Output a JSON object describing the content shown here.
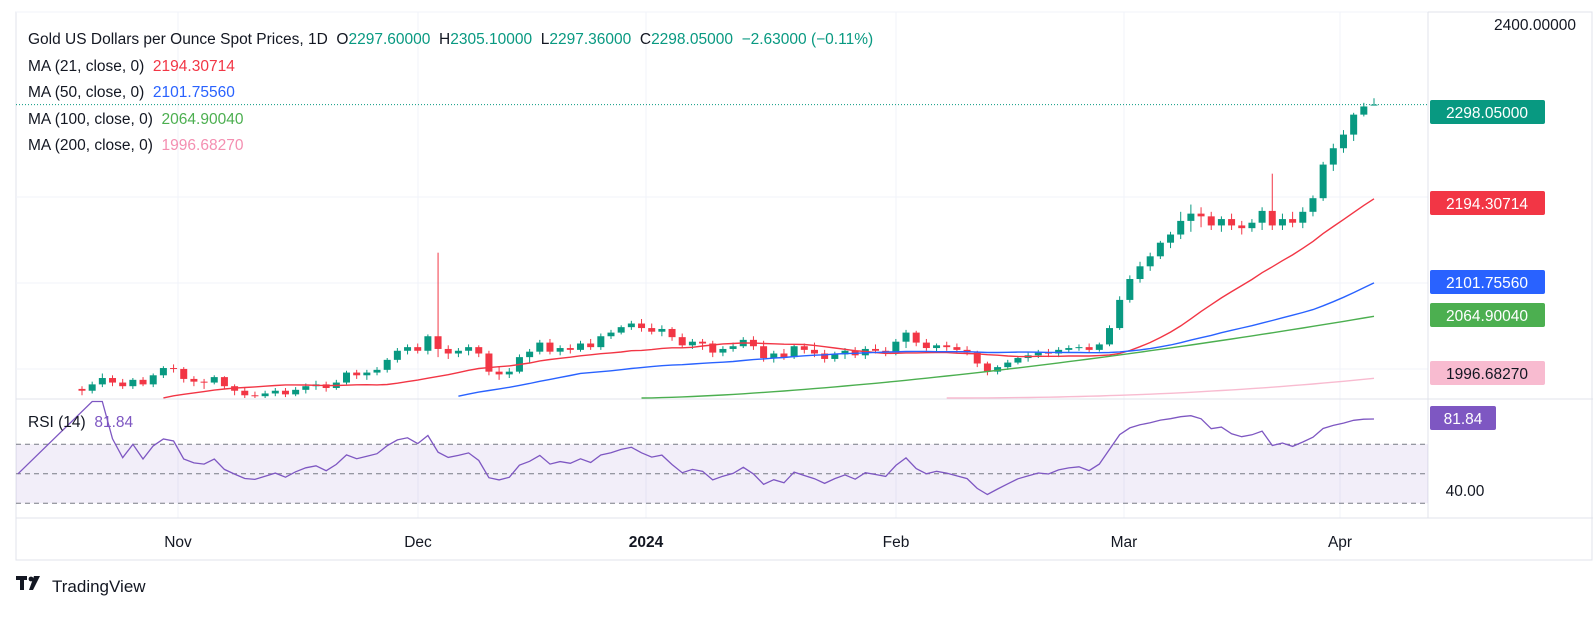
{
  "legend": {
    "title": "Gold US Dollars per Ounce Spot Prices, 1D",
    "o_label": "O",
    "o": "2297.60000",
    "h_label": "H",
    "h": "2305.10000",
    "l_label": "L",
    "l": "2297.36000",
    "c_label": "C",
    "c": "2298.05000",
    "change": "−2.63000 (−0.11%)",
    "ma21_label": "MA (21, close, 0)",
    "ma21": "2194.30714",
    "ma50_label": "MA (50, close, 0)",
    "ma50": "2101.75560",
    "ma100_label": "MA (100, close, 0)",
    "ma100": "2064.90040",
    "ma200_label": "MA (200, close, 0)",
    "ma200": "1996.68270"
  },
  "rsi": {
    "label": "RSI (14)",
    "value": "81.84"
  },
  "brand": {
    "name": "TradingView"
  },
  "colors": {
    "up": "#089981",
    "down": "#F23645",
    "ma21": "#F23645",
    "ma50": "#2962FF",
    "ma100": "#4CAF50",
    "ma200": "#F8BBD0",
    "rsi": "#7E57C2"
  },
  "chart_data": {
    "type": "candlestick",
    "interval": "1D",
    "x_ticks": [
      "Nov",
      "Dec",
      "2024",
      "Feb",
      "Mar",
      "Apr"
    ],
    "y_ticks": [
      "2400.00000"
    ],
    "price_labels": [
      {
        "series": "close",
        "value": "2298.05000"
      },
      {
        "series": "MA 21",
        "value": "2194.30714"
      },
      {
        "series": "MA 50",
        "value": "2101.75560"
      },
      {
        "series": "MA 100",
        "value": "2064.90040"
      },
      {
        "series": "MA 200",
        "value": "1996.68270"
      }
    ],
    "price_range": [
      1975,
      2400
    ],
    "candles": [
      [
        1985,
        1988,
        1978,
        1983
      ],
      [
        1983,
        1993,
        1980,
        1990
      ],
      [
        1990,
        2002,
        1987,
        1997
      ],
      [
        1997,
        2000,
        1988,
        1992
      ],
      [
        1992,
        1996,
        1985,
        1988
      ],
      [
        1988,
        1997,
        1985,
        1995
      ],
      [
        1995,
        1998,
        1988,
        1990
      ],
      [
        1990,
        2002,
        1987,
        2000
      ],
      [
        2000,
        2010,
        1997,
        2008
      ],
      [
        2008,
        2012,
        2003,
        2007
      ],
      [
        2007,
        2009,
        1992,
        1996
      ],
      [
        1996,
        1999,
        1988,
        1993
      ],
      [
        1993,
        1996,
        1985,
        1992
      ],
      [
        1992,
        2000,
        1990,
        1998
      ],
      [
        1998,
        1999,
        1985,
        1988
      ],
      [
        1988,
        1990,
        1978,
        1983
      ],
      [
        1983,
        1986,
        1975,
        1978
      ],
      [
        1978,
        1982,
        1974,
        1977
      ],
      [
        1977,
        1983,
        1975,
        1980
      ],
      [
        1980,
        1986,
        1977,
        1983
      ],
      [
        1983,
        1986,
        1976,
        1979
      ],
      [
        1979,
        1987,
        1977,
        1984
      ],
      [
        1984,
        1991,
        1980,
        1988
      ],
      [
        1988,
        1994,
        1984,
        1990
      ],
      [
        1990,
        1993,
        1982,
        1986
      ],
      [
        1986,
        1995,
        1984,
        1992
      ],
      [
        1992,
        2005,
        1990,
        2003
      ],
      [
        2003,
        2006,
        1996,
        2000
      ],
      [
        2000,
        2006,
        1995,
        2003
      ],
      [
        2003,
        2009,
        2000,
        2006
      ],
      [
        2006,
        2019,
        2003,
        2017
      ],
      [
        2017,
        2030,
        2014,
        2027
      ],
      [
        2027,
        2034,
        2023,
        2031
      ],
      [
        2031,
        2035,
        2024,
        2027
      ],
      [
        2027,
        2045,
        2023,
        2043
      ],
      [
        2043,
        2135,
        2020,
        2029
      ],
      [
        2029,
        2033,
        2018,
        2024
      ],
      [
        2024,
        2030,
        2020,
        2027
      ],
      [
        2027,
        2034,
        2022,
        2031
      ],
      [
        2031,
        2033,
        2020,
        2024
      ],
      [
        2024,
        2027,
        2000,
        2004
      ],
      [
        2004,
        2010,
        1995,
        2001
      ],
      [
        2001,
        2008,
        1997,
        2004
      ],
      [
        2004,
        2023,
        2002,
        2020
      ],
      [
        2020,
        2029,
        2014,
        2026
      ],
      [
        2026,
        2039,
        2023,
        2036
      ],
      [
        2036,
        2040,
        2023,
        2026
      ],
      [
        2026,
        2033,
        2022,
        2030
      ],
      [
        2030,
        2034,
        2024,
        2028
      ],
      [
        2028,
        2038,
        2026,
        2035
      ],
      [
        2035,
        2040,
        2028,
        2031
      ],
      [
        2031,
        2046,
        2028,
        2043
      ],
      [
        2043,
        2050,
        2040,
        2047
      ],
      [
        2047,
        2055,
        2045,
        2053
      ],
      [
        2053,
        2060,
        2050,
        2057
      ],
      [
        2057,
        2062,
        2048,
        2052
      ],
      [
        2052,
        2057,
        2045,
        2048
      ],
      [
        2048,
        2055,
        2043,
        2051
      ],
      [
        2051,
        2053,
        2038,
        2042
      ],
      [
        2042,
        2046,
        2030,
        2033
      ],
      [
        2033,
        2040,
        2029,
        2037
      ],
      [
        2037,
        2040,
        2028,
        2035
      ],
      [
        2035,
        2038,
        2020,
        2025
      ],
      [
        2025,
        2032,
        2021,
        2029
      ],
      [
        2029,
        2036,
        2026,
        2032
      ],
      [
        2032,
        2042,
        2030,
        2039
      ],
      [
        2039,
        2043,
        2028,
        2032
      ],
      [
        2032,
        2038,
        2015,
        2019
      ],
      [
        2019,
        2027,
        2014,
        2024
      ],
      [
        2024,
        2029,
        2017,
        2020
      ],
      [
        2020,
        2034,
        2018,
        2032
      ],
      [
        2032,
        2035,
        2024,
        2028
      ],
      [
        2028,
        2036,
        2020,
        2024
      ],
      [
        2024,
        2028,
        2014,
        2018
      ],
      [
        2018,
        2026,
        2015,
        2023
      ],
      [
        2023,
        2030,
        2018,
        2027
      ],
      [
        2027,
        2031,
        2019,
        2022
      ],
      [
        2022,
        2032,
        2018,
        2029
      ],
      [
        2029,
        2034,
        2024,
        2027
      ],
      [
        2027,
        2031,
        2021,
        2025
      ],
      [
        2025,
        2040,
        2022,
        2037
      ],
      [
        2037,
        2050,
        2030,
        2047
      ],
      [
        2047,
        2049,
        2032,
        2036
      ],
      [
        2036,
        2040,
        2027,
        2030
      ],
      [
        2030,
        2035,
        2026,
        2033
      ],
      [
        2033,
        2037,
        2027,
        2031
      ],
      [
        2031,
        2035,
        2024,
        2028
      ],
      [
        2028,
        2032,
        2022,
        2025
      ],
      [
        2025,
        2027,
        2009,
        2013
      ],
      [
        2013,
        2015,
        2000,
        2004
      ],
      [
        2004,
        2011,
        2001,
        2009
      ],
      [
        2009,
        2017,
        2006,
        2014
      ],
      [
        2014,
        2021,
        2012,
        2019
      ],
      [
        2019,
        2025,
        2015,
        2022
      ],
      [
        2022,
        2028,
        2019,
        2025
      ],
      [
        2025,
        2029,
        2020,
        2024
      ],
      [
        2024,
        2031,
        2020,
        2028
      ],
      [
        2028,
        2033,
        2025,
        2030
      ],
      [
        2030,
        2034,
        2027,
        2031
      ],
      [
        2031,
        2035,
        2025,
        2028
      ],
      [
        2028,
        2036,
        2026,
        2034
      ],
      [
        2034,
        2055,
        2032,
        2052
      ],
      [
        2052,
        2087,
        2050,
        2083
      ],
      [
        2083,
        2110,
        2080,
        2106
      ],
      [
        2106,
        2125,
        2102,
        2120
      ],
      [
        2120,
        2135,
        2115,
        2131
      ],
      [
        2131,
        2148,
        2128,
        2146
      ],
      [
        2146,
        2158,
        2140,
        2155
      ],
      [
        2155,
        2180,
        2150,
        2170
      ],
      [
        2170,
        2188,
        2158,
        2178
      ],
      [
        2178,
        2185,
        2163,
        2175
      ],
      [
        2175,
        2180,
        2160,
        2165
      ],
      [
        2165,
        2175,
        2158,
        2172
      ],
      [
        2172,
        2178,
        2160,
        2165
      ],
      [
        2165,
        2170,
        2155,
        2162
      ],
      [
        2162,
        2172,
        2158,
        2168
      ],
      [
        2168,
        2185,
        2160,
        2181
      ],
      [
        2181,
        2222,
        2160,
        2165
      ],
      [
        2165,
        2178,
        2160,
        2172
      ],
      [
        2172,
        2180,
        2163,
        2168
      ],
      [
        2168,
        2185,
        2162,
        2180
      ],
      [
        2180,
        2198,
        2175,
        2195
      ],
      [
        2195,
        2235,
        2192,
        2232
      ],
      [
        2232,
        2255,
        2225,
        2250
      ],
      [
        2250,
        2270,
        2245,
        2265
      ],
      [
        2265,
        2289,
        2258,
        2287
      ],
      [
        2287,
        2300,
        2285,
        2296
      ],
      [
        2297.6,
        2305.1,
        2297.36,
        2298.05
      ]
    ],
    "rsi_range": [
      20,
      100
    ],
    "rsi_y_ticks": [
      "40.00"
    ],
    "rsi_levels": [
      70,
      50,
      30
    ]
  }
}
